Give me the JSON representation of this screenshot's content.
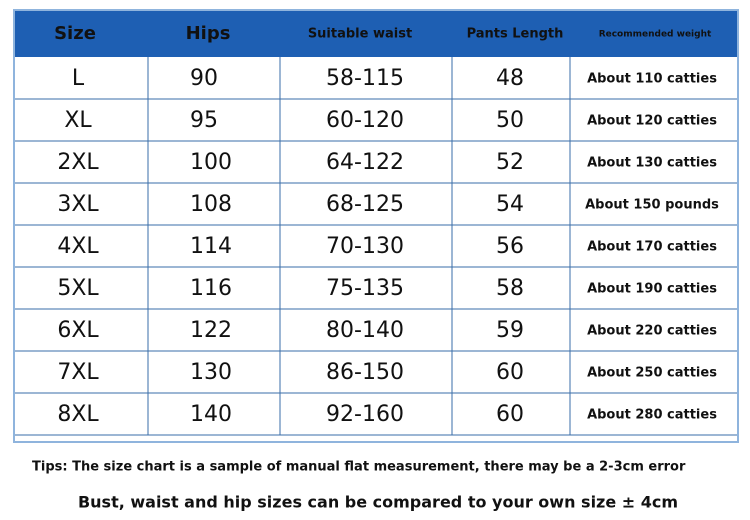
{
  "table": {
    "header": [
      "Size",
      "Hips",
      "Suitable waist",
      "Pants Length",
      "Recommended weight"
    ],
    "rows": [
      [
        "L",
        "90",
        "58-115",
        "48",
        "About 110 catties"
      ],
      [
        "XL",
        "95",
        "60-120",
        "50",
        "About 120 catties"
      ],
      [
        "2XL",
        "100",
        "64-122",
        "52",
        "About 130 catties"
      ],
      [
        "3XL",
        "108",
        "68-125",
        "54",
        "About 150 pounds"
      ],
      [
        "4XL",
        "114",
        "70-130",
        "56",
        "About 170 catties"
      ],
      [
        "5XL",
        "116",
        "75-135",
        "58",
        "About 190 catties"
      ],
      [
        "6XL",
        "122",
        "80-140",
        "59",
        "About 220 catties"
      ],
      [
        "7XL",
        "130",
        "86-150",
        "60",
        "About 250 catties"
      ],
      [
        "8XL",
        "140",
        "92-160",
        "60",
        "About 280 catties"
      ]
    ]
  },
  "notes": {
    "tips": "Tips: The size chart is a sample of manual flat measurement, there may be a 2-3cm error",
    "compare": "Bust, waist and hip sizes can be compared to your own size ± 4cm"
  }
}
